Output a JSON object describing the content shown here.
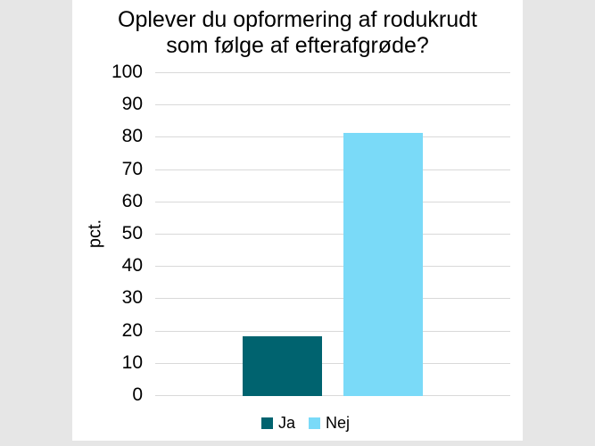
{
  "page": {
    "background_color": "#E6E6E6",
    "panel_color": "#FFFFFF",
    "gridline_color": "#D9D9D9",
    "text_color": "#000000"
  },
  "chart_data": {
    "type": "bar",
    "title": "Oplever du opformering af rodukrudt som følge af efterafgrøde?",
    "title_lines": [
      "Oplever du opformering af rodukrudt",
      "som følge af efterafgrøde?"
    ],
    "xlabel": "",
    "ylabel": "pct.",
    "categories": [
      "Ja",
      "Nej"
    ],
    "values": [
      18.5,
      81.5
    ],
    "series_colors": {
      "Ja": "#00636F",
      "Nej": "#7ADAF8"
    },
    "ylim": [
      0,
      100
    ],
    "ytick_step": 10,
    "ytick_labels": [
      "0",
      "10",
      "20",
      "30",
      "40",
      "50",
      "60",
      "70",
      "80",
      "90",
      "100"
    ],
    "grid": true,
    "legend_position": "bottom",
    "legend_entries": [
      "Ja",
      "Nej"
    ]
  }
}
